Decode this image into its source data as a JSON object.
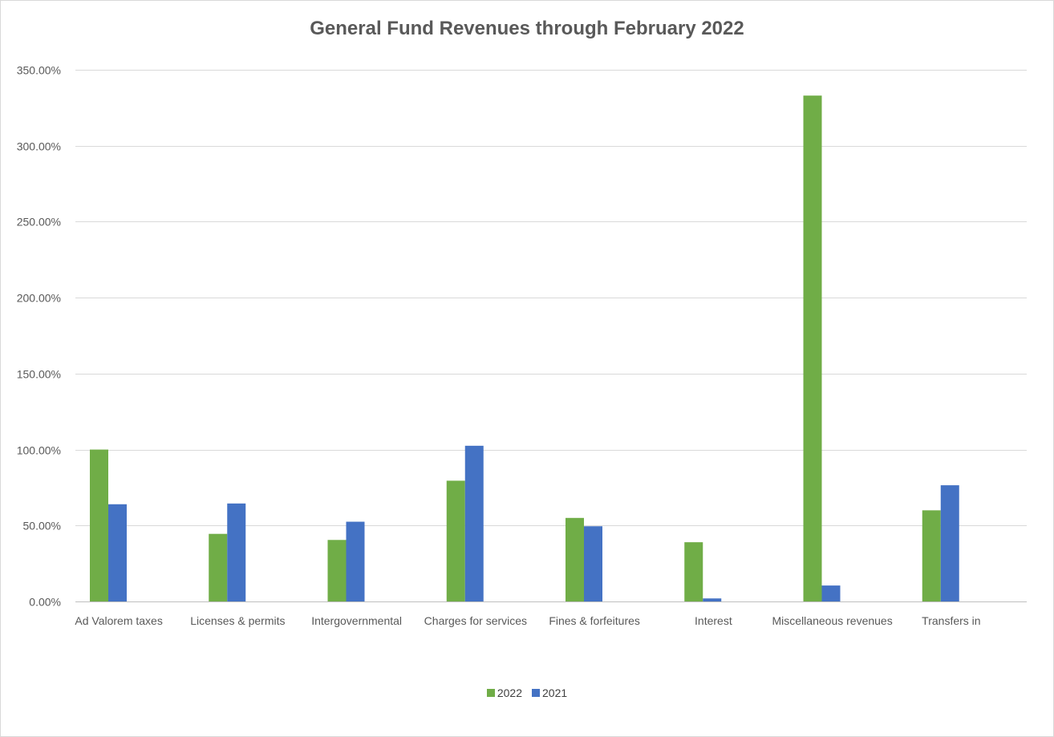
{
  "chart_data": {
    "type": "bar",
    "title": "General Fund Revenues through February 2022",
    "xlabel": "",
    "ylabel": "",
    "categories": [
      "Ad Valorem taxes",
      "Licenses & permits",
      "Intergovernmental",
      "Charges for services",
      "Fines & forfeitures",
      "Interest",
      "Miscellaneous revenues",
      "Transfers in"
    ],
    "series": [
      {
        "name": "2022",
        "color": "#70ad47",
        "values": [
          100.0,
          44.5,
          40.5,
          79.5,
          55.0,
          39.0,
          333.0,
          60.0
        ]
      },
      {
        "name": "2021",
        "color": "#4472c4",
        "values": [
          64.0,
          64.5,
          52.5,
          102.5,
          49.5,
          2.0,
          10.5,
          76.5
        ]
      }
    ],
    "ylim": [
      0,
      350
    ],
    "yticks": [
      0,
      50,
      100,
      150,
      200,
      250,
      300,
      350
    ],
    "ytick_labels": [
      "0.00%",
      "50.00%",
      "100.00%",
      "150.00%",
      "200.00%",
      "250.00%",
      "300.00%",
      "350.00%"
    ],
    "y_unit": "%",
    "grid": true,
    "legend_position": "bottom"
  }
}
